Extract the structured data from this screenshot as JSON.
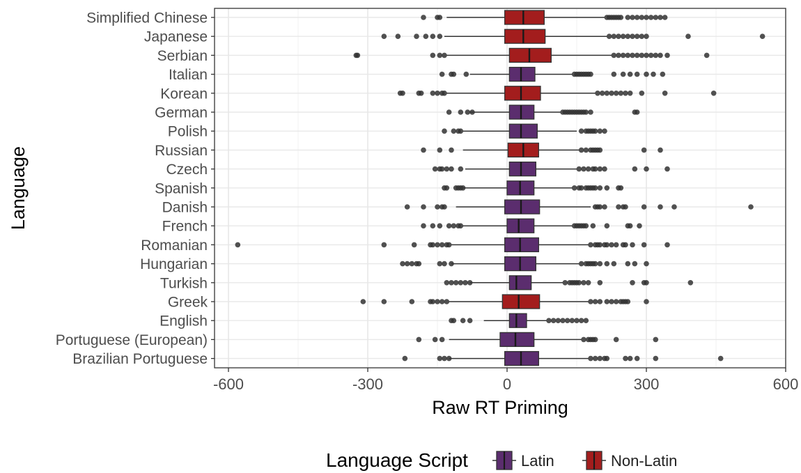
{
  "chart_data": {
    "type": "boxplot",
    "title": "",
    "xlabel": "Raw RT Priming",
    "ylabel": "Language",
    "xlim": [
      -630,
      600
    ],
    "x_ticks": [
      -600,
      -300,
      0,
      300,
      600
    ],
    "x_tick_labels": [
      "-600",
      "-300",
      "0",
      "300",
      "600"
    ],
    "grid": true,
    "legend": {
      "title": "Language Script",
      "position": "bottom",
      "entries": [
        {
          "label": "Latin",
          "color": "#5b2d6e"
        },
        {
          "label": "Non-Latin",
          "color": "#a31d1d"
        }
      ]
    },
    "colors": {
      "Latin": "#5b2d6e",
      "Non-Latin": "#a31d1d",
      "outlier": "#333333"
    },
    "series": [
      {
        "category": "Simplified Chinese",
        "script": "Non-Latin",
        "whisker_low": -130,
        "q1": -5,
        "median": 35,
        "q3": 80,
        "whisker_high": 210,
        "outliers": [
          -180,
          -150,
          -145,
          215,
          220,
          225,
          230,
          235,
          240,
          245,
          260,
          270,
          280,
          290,
          300,
          310,
          320,
          330,
          340
        ]
      },
      {
        "category": "Japanese",
        "script": "Non-Latin",
        "whisker_low": -135,
        "q1": -5,
        "median": 35,
        "q3": 82,
        "whisker_high": 215,
        "outliers": [
          -265,
          -235,
          -195,
          -175,
          -160,
          -145,
          220,
          230,
          240,
          250,
          260,
          270,
          280,
          290,
          300,
          390,
          550
        ]
      },
      {
        "category": "Serbian",
        "script": "Non-Latin",
        "whisker_low": -130,
        "q1": 5,
        "median": 48,
        "q3": 95,
        "whisker_high": 225,
        "outliers": [
          -325,
          -322,
          -160,
          -145,
          -135,
          230,
          240,
          250,
          260,
          270,
          280,
          290,
          300,
          310,
          320,
          330,
          345,
          430
        ]
      },
      {
        "category": "Italian",
        "script": "Latin",
        "whisker_low": -80,
        "q1": 5,
        "median": 30,
        "q3": 60,
        "whisker_high": 140,
        "outliers": [
          -140,
          -120,
          -115,
          -88,
          145,
          150,
          155,
          160,
          165,
          170,
          175,
          180,
          230,
          250,
          265,
          280,
          300,
          315,
          335
        ]
      },
      {
        "category": "Korean",
        "script": "Non-Latin",
        "whisker_low": -130,
        "q1": -5,
        "median": 30,
        "q3": 72,
        "whisker_high": 190,
        "outliers": [
          -230,
          -225,
          -190,
          -185,
          -160,
          -150,
          -140,
          -135,
          195,
          205,
          215,
          225,
          235,
          245,
          255,
          265,
          290,
          340,
          445
        ]
      },
      {
        "category": "German",
        "script": "Latin",
        "whisker_low": -80,
        "q1": 5,
        "median": 30,
        "q3": 58,
        "whisker_high": 115,
        "outliers": [
          -125,
          -100,
          -85,
          -75,
          120,
          125,
          130,
          135,
          140,
          145,
          150,
          155,
          160,
          165,
          170,
          180,
          275,
          280
        ]
      },
      {
        "category": "Polish",
        "script": "Latin",
        "whisker_low": -95,
        "q1": 5,
        "median": 30,
        "q3": 65,
        "whisker_high": 150,
        "outliers": [
          -135,
          -115,
          -105,
          -100,
          160,
          170,
          175,
          180,
          185,
          190,
          200,
          210
        ]
      },
      {
        "category": "Russian",
        "script": "Non-Latin",
        "whisker_low": -95,
        "q1": 2,
        "median": 35,
        "q3": 68,
        "whisker_high": 155,
        "outliers": [
          -180,
          -145,
          -120,
          160,
          170,
          180,
          185,
          190,
          195,
          200,
          295,
          330
        ]
      },
      {
        "category": "Czech",
        "script": "Latin",
        "whisker_low": -90,
        "q1": 5,
        "median": 30,
        "q3": 62,
        "whisker_high": 150,
        "outliers": [
          -155,
          -145,
          -140,
          -130,
          -120,
          -100,
          155,
          165,
          175,
          185,
          190,
          200,
          210,
          275,
          300,
          345
        ]
      },
      {
        "category": "Spanish",
        "script": "Latin",
        "whisker_low": -95,
        "q1": 0,
        "median": 28,
        "q3": 58,
        "whisker_high": 140,
        "outliers": [
          -135,
          -130,
          -110,
          -105,
          -100,
          -95,
          145,
          155,
          160,
          170,
          175,
          180,
          185,
          190,
          200,
          215,
          240,
          245
        ]
      },
      {
        "category": "Danish",
        "script": "Latin",
        "whisker_low": -110,
        "q1": -5,
        "median": 30,
        "q3": 70,
        "whisker_high": 180,
        "outliers": [
          -215,
          -180,
          -150,
          -140,
          -135,
          190,
          195,
          200,
          210,
          240,
          250,
          255,
          295,
          330,
          360,
          525
        ]
      },
      {
        "category": "French",
        "script": "Latin",
        "whisker_low": -95,
        "q1": 0,
        "median": 25,
        "q3": 58,
        "whisker_high": 140,
        "outliers": [
          -180,
          -160,
          -145,
          -125,
          -115,
          -105,
          -100,
          145,
          150,
          155,
          160,
          165,
          170,
          185,
          215,
          260,
          265,
          285
        ]
      },
      {
        "category": "Romanian",
        "script": "Latin",
        "whisker_low": -120,
        "q1": -5,
        "median": 28,
        "q3": 68,
        "whisker_high": 175,
        "outliers": [
          -580,
          -265,
          -200,
          -165,
          -160,
          -150,
          -140,
          -130,
          -125,
          180,
          190,
          195,
          200,
          210,
          215,
          225,
          235,
          250,
          255,
          270,
          295,
          345
        ]
      },
      {
        "category": "Hungarian",
        "script": "Latin",
        "whisker_low": -120,
        "q1": -5,
        "median": 28,
        "q3": 62,
        "whisker_high": 155,
        "outliers": [
          -225,
          -215,
          -205,
          -195,
          -190,
          -145,
          -135,
          -120,
          160,
          170,
          175,
          180,
          185,
          190,
          200,
          215,
          230,
          260,
          275,
          300
        ]
      },
      {
        "category": "Turkish",
        "script": "Latin",
        "whisker_low": -80,
        "q1": 5,
        "median": 20,
        "q3": 52,
        "whisker_high": 120,
        "outliers": [
          -130,
          -120,
          -110,
          -100,
          -90,
          -80,
          125,
          135,
          140,
          145,
          150,
          155,
          165,
          175,
          200,
          270,
          295,
          300,
          395
        ]
      },
      {
        "category": "Greek",
        "script": "Non-Latin",
        "whisker_low": -125,
        "q1": -10,
        "median": 25,
        "q3": 70,
        "whisker_high": 175,
        "outliers": [
          -310,
          -265,
          -205,
          -165,
          -160,
          -150,
          -140,
          -130,
          180,
          190,
          200,
          215,
          225,
          235,
          245,
          250,
          255,
          260,
          300
        ]
      },
      {
        "category": "English",
        "script": "Latin",
        "whisker_low": -50,
        "q1": 5,
        "median": 20,
        "q3": 42,
        "whisker_high": 85,
        "outliers": [
          -120,
          -115,
          -95,
          -80,
          90,
          100,
          110,
          120,
          130,
          140,
          150,
          160,
          170
        ]
      },
      {
        "category": "Portuguese (European)",
        "script": "Latin",
        "whisker_low": -125,
        "q1": -15,
        "median": 18,
        "q3": 58,
        "whisker_high": 160,
        "outliers": [
          -190,
          -155,
          -140,
          165,
          175,
          180,
          185,
          190,
          235,
          320
        ]
      },
      {
        "category": "Brazilian Portuguese",
        "script": "Latin",
        "whisker_low": -125,
        "q1": -5,
        "median": 30,
        "q3": 68,
        "whisker_high": 175,
        "outliers": [
          -220,
          -145,
          -135,
          -125,
          180,
          190,
          200,
          210,
          215,
          255,
          265,
          280,
          320,
          460
        ]
      }
    ]
  }
}
